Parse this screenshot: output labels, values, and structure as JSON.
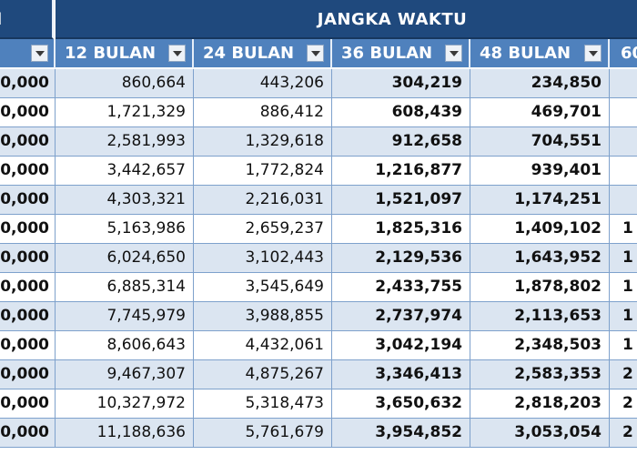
{
  "band": {
    "left_fragment": "l",
    "title": "JANGKA WAKTU"
  },
  "columns": [
    {
      "label": "12 BULAN"
    },
    {
      "label": "24 BULAN"
    },
    {
      "label": "36 BULAN"
    },
    {
      "label": "48 BULAN"
    },
    {
      "label": "60"
    }
  ],
  "rows": [
    {
      "principal": "0,000",
      "m12": "860,664",
      "m24": "443,206",
      "m36": "304,219",
      "m48": "234,850",
      "m60": ""
    },
    {
      "principal": "0,000",
      "m12": "1,721,329",
      "m24": "886,412",
      "m36": "608,439",
      "m48": "469,701",
      "m60": ""
    },
    {
      "principal": "0,000",
      "m12": "2,581,993",
      "m24": "1,329,618",
      "m36": "912,658",
      "m48": "704,551",
      "m60": ""
    },
    {
      "principal": "0,000",
      "m12": "3,442,657",
      "m24": "1,772,824",
      "m36": "1,216,877",
      "m48": "939,401",
      "m60": ""
    },
    {
      "principal": "0,000",
      "m12": "4,303,321",
      "m24": "2,216,031",
      "m36": "1,521,097",
      "m48": "1,174,251",
      "m60": ""
    },
    {
      "principal": "0,000",
      "m12": "5,163,986",
      "m24": "2,659,237",
      "m36": "1,825,316",
      "m48": "1,409,102",
      "m60": "1"
    },
    {
      "principal": "0,000",
      "m12": "6,024,650",
      "m24": "3,102,443",
      "m36": "2,129,536",
      "m48": "1,643,952",
      "m60": "1"
    },
    {
      "principal": "0,000",
      "m12": "6,885,314",
      "m24": "3,545,649",
      "m36": "2,433,755",
      "m48": "1,878,802",
      "m60": "1"
    },
    {
      "principal": "0,000",
      "m12": "7,745,979",
      "m24": "3,988,855",
      "m36": "2,737,974",
      "m48": "2,113,653",
      "m60": "1"
    },
    {
      "principal": "0,000",
      "m12": "8,606,643",
      "m24": "4,432,061",
      "m36": "3,042,194",
      "m48": "2,348,503",
      "m60": "1"
    },
    {
      "principal": "0,000",
      "m12": "9,467,307",
      "m24": "4,875,267",
      "m36": "3,346,413",
      "m48": "2,583,353",
      "m60": "2"
    },
    {
      "principal": "0,000",
      "m12": "10,327,972",
      "m24": "5,318,473",
      "m36": "3,650,632",
      "m48": "2,818,203",
      "m60": "2"
    },
    {
      "principal": "0,000",
      "m12": "11,188,636",
      "m24": "5,761,679",
      "m36": "3,954,852",
      "m48": "3,053,054",
      "m60": "2"
    }
  ]
}
